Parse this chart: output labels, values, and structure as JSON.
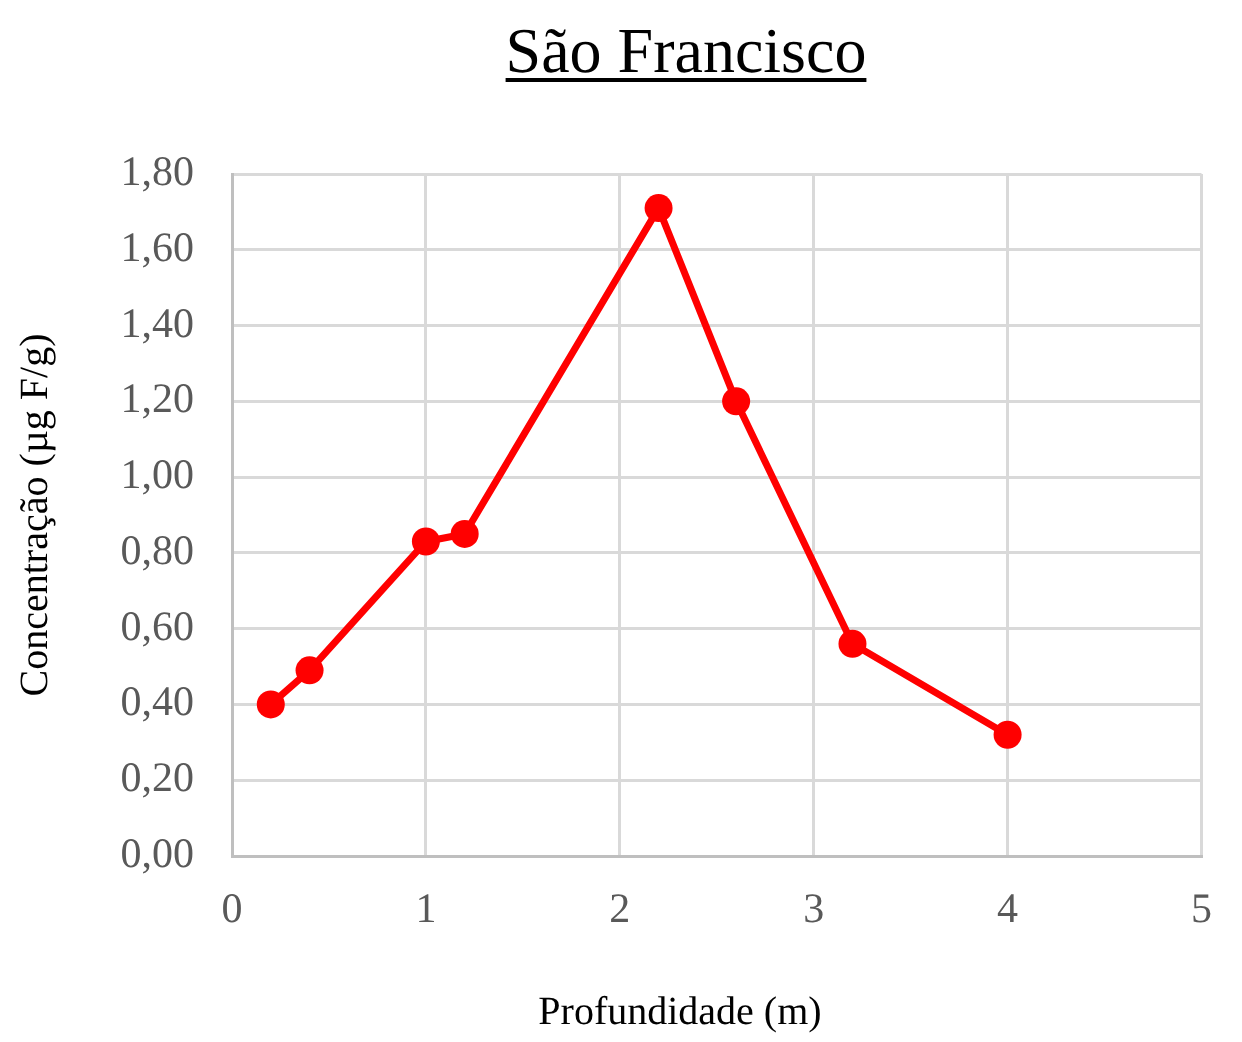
{
  "chart_data": {
    "type": "line",
    "title": "São Francisco",
    "xlabel": "Profundidade (m)",
    "ylabel": "Concentração (µg F/g)",
    "x": [
      0.2,
      0.4,
      1,
      1.2,
      2.2,
      2.6,
      3.2,
      4
    ],
    "series": [
      {
        "color": "#ff0000",
        "values": [
          0.4,
          0.49,
          0.83,
          0.85,
          1.71,
          1.2,
          0.56,
          0.32
        ]
      }
    ],
    "xlim": [
      0,
      5
    ],
    "xticks": [
      0,
      1,
      2,
      3,
      4,
      5
    ],
    "ylim": [
      0,
      1.8
    ],
    "yticks": [
      {
        "value": 0,
        "label": "0,00"
      },
      {
        "value": 0.2,
        "label": "0,20"
      },
      {
        "value": 0.4,
        "label": "0,40"
      },
      {
        "value": 0.6,
        "label": "0,60"
      },
      {
        "value": 0.8,
        "label": "0,80"
      },
      {
        "value": 1,
        "label": "1,00"
      },
      {
        "value": 1.2,
        "label": "1,20"
      },
      {
        "value": 1.4,
        "label": "1,40"
      },
      {
        "value": 1.6,
        "label": "1,60"
      },
      {
        "value": 1.8,
        "label": "1,80"
      }
    ],
    "grid": true,
    "marker": "circle",
    "line_style": "solid"
  }
}
